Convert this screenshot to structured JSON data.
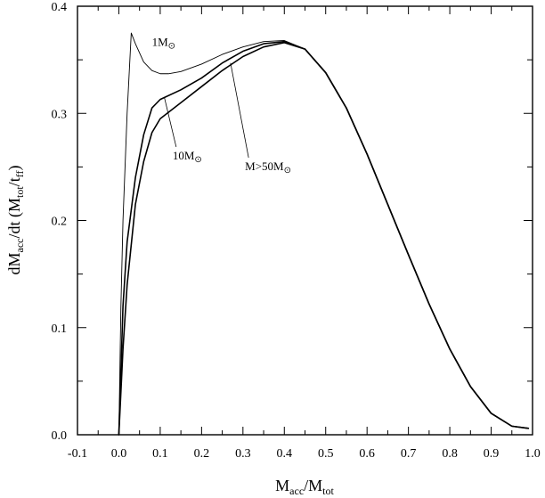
{
  "chart_data": {
    "type": "line",
    "xlabel_main": "M",
    "xlabel_sub_1": "acc",
    "xlabel_sep": "/M",
    "xlabel_sub_2": "tot",
    "ylabel_main": "dM",
    "ylabel_sub_1": "acc",
    "ylabel_mid": "/dt (M",
    "ylabel_sub_2": "tot",
    "ylabel_sep": "/t",
    "ylabel_sub_3": "ff",
    "ylabel_end": ")",
    "xlim": [
      -0.1,
      1.0
    ],
    "ylim": [
      0.0,
      0.4
    ],
    "xticks": [
      "-0.1",
      "0.0",
      "0.1",
      "0.2",
      "0.3",
      "0.4",
      "0.5",
      "0.6",
      "0.7",
      "0.8",
      "0.9",
      "1.0"
    ],
    "yticks": [
      "0.0",
      "0.1",
      "0.2",
      "0.3",
      "0.4"
    ],
    "series": [
      {
        "name": "1M",
        "name_symbol": "⊙",
        "x": [
          0.0,
          0.005,
          0.01,
          0.02,
          0.03,
          0.04,
          0.06,
          0.08,
          0.1,
          0.12,
          0.15,
          0.2,
          0.25,
          0.3,
          0.35,
          0.4,
          0.45,
          0.5,
          0.55,
          0.6,
          0.65,
          0.7,
          0.75,
          0.8,
          0.85,
          0.9,
          0.95,
          0.99
        ],
        "y": [
          0.0,
          0.12,
          0.2,
          0.3,
          0.375,
          0.365,
          0.348,
          0.34,
          0.337,
          0.337,
          0.339,
          0.346,
          0.355,
          0.362,
          0.367,
          0.368,
          0.36,
          0.338,
          0.305,
          0.262,
          0.215,
          0.168,
          0.122,
          0.08,
          0.045,
          0.02,
          0.008,
          0.006
        ]
      },
      {
        "name": "10M",
        "name_symbol": "⊙",
        "x": [
          0.0,
          0.01,
          0.02,
          0.04,
          0.06,
          0.08,
          0.1,
          0.15,
          0.2,
          0.25,
          0.3,
          0.35,
          0.4,
          0.45,
          0.5,
          0.55,
          0.6,
          0.65,
          0.7,
          0.75,
          0.8,
          0.85,
          0.9,
          0.95,
          0.99
        ],
        "y": [
          0.0,
          0.12,
          0.18,
          0.24,
          0.28,
          0.305,
          0.313,
          0.322,
          0.333,
          0.347,
          0.358,
          0.365,
          0.367,
          0.36,
          0.338,
          0.305,
          0.262,
          0.215,
          0.168,
          0.122,
          0.08,
          0.045,
          0.02,
          0.008,
          0.006
        ]
      },
      {
        "name": "M>50M",
        "name_symbol": "⊙",
        "x": [
          0.0,
          0.01,
          0.02,
          0.04,
          0.06,
          0.08,
          0.1,
          0.15,
          0.2,
          0.25,
          0.3,
          0.35,
          0.4,
          0.45,
          0.5,
          0.55,
          0.6,
          0.65,
          0.7,
          0.75,
          0.8,
          0.85,
          0.9,
          0.95,
          0.99
        ],
        "y": [
          0.0,
          0.08,
          0.14,
          0.215,
          0.255,
          0.282,
          0.295,
          0.31,
          0.325,
          0.34,
          0.353,
          0.362,
          0.366,
          0.36,
          0.338,
          0.305,
          0.262,
          0.215,
          0.168,
          0.122,
          0.08,
          0.045,
          0.02,
          0.008,
          0.006
        ]
      }
    ],
    "annotations": [
      {
        "series": 0,
        "text_x": 0.08,
        "text_y": 0.363,
        "point_x": 0.08,
        "point_y": 0.363
      },
      {
        "series": 1,
        "text_x": 0.13,
        "text_y": 0.257,
        "point_x": 0.11,
        "point_y": 0.315
      },
      {
        "series": 2,
        "text_x": 0.305,
        "text_y": 0.247,
        "point_x": 0.27,
        "point_y": 0.347
      }
    ],
    "grid": false,
    "legend": "none"
  }
}
